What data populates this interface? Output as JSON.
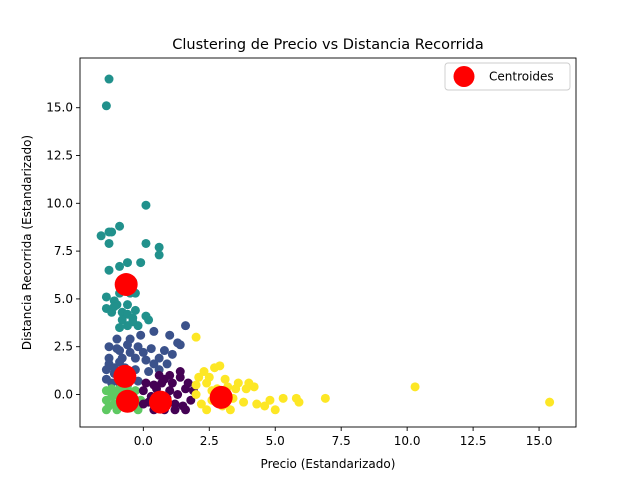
{
  "chart_data": {
    "type": "scatter",
    "title": "Clustering de Precio vs Distancia Recorrida",
    "xlabel": "Precio (Estandarizado)",
    "ylabel": "Distancia Recorrida (Estandarizado)",
    "xlim": [
      -2.4,
      16.4
    ],
    "ylim": [
      -1.7,
      17.6
    ],
    "xticks": [
      0.0,
      2.5,
      5.0,
      7.5,
      10.0,
      12.5,
      15.0
    ],
    "xtick_labels": [
      "0.0",
      "2.5",
      "5.0",
      "7.5",
      "10.0",
      "12.5",
      "15.0"
    ],
    "yticks": [
      0.0,
      2.5,
      5.0,
      7.5,
      10.0,
      12.5,
      15.0
    ],
    "ytick_labels": [
      "0.0",
      "2.5",
      "5.0",
      "7.5",
      "10.0",
      "12.5",
      "15.0"
    ],
    "grid": false,
    "legend_position": "top-right",
    "series": [
      {
        "color": "#21918c",
        "points": [
          [
            -1.3,
            16.5
          ],
          [
            -1.4,
            15.1
          ],
          [
            0.1,
            9.9
          ],
          [
            -0.9,
            8.8
          ],
          [
            -1.6,
            8.3
          ],
          [
            -1.3,
            8.5
          ],
          [
            -1.2,
            8.5
          ],
          [
            0.1,
            7.9
          ],
          [
            -1.3,
            7.9
          ],
          [
            0.6,
            7.7
          ],
          [
            0.6,
            7.3
          ],
          [
            -0.9,
            6.7
          ],
          [
            -0.6,
            6.9
          ],
          [
            -0.1,
            6.9
          ],
          [
            -1.3,
            6.5
          ],
          [
            -0.6,
            6.1
          ],
          [
            -0.4,
            5.9
          ],
          [
            -1.4,
            5.1
          ],
          [
            -0.9,
            5.3
          ],
          [
            -0.5,
            5.3
          ],
          [
            -0.3,
            5.3
          ],
          [
            -1.1,
            4.9
          ],
          [
            -1.0,
            4.7
          ],
          [
            -0.6,
            4.7
          ],
          [
            -0.3,
            4.4
          ],
          [
            -1.4,
            4.5
          ],
          [
            -1.2,
            4.3
          ],
          [
            -0.8,
            4.3
          ],
          [
            -0.6,
            4.2
          ],
          [
            -0.4,
            4.0
          ],
          [
            0.1,
            4.1
          ],
          [
            0.2,
            3.9
          ],
          [
            -0.8,
            3.9
          ],
          [
            -0.6,
            3.6
          ],
          [
            -0.2,
            3.6
          ],
          [
            -0.9,
            3.5
          ],
          [
            -1.1,
            4.6
          ],
          [
            -0.4,
            3.8
          ]
        ]
      },
      {
        "color": "#3b528b",
        "points": [
          [
            1.6,
            3.6
          ],
          [
            1.0,
            3.1
          ],
          [
            1.3,
            2.7
          ],
          [
            0.4,
            3.3
          ],
          [
            -0.1,
            3.1
          ],
          [
            -0.5,
            2.9
          ],
          [
            -1.0,
            2.9
          ],
          [
            -1.3,
            2.5
          ],
          [
            -0.9,
            2.3
          ],
          [
            -0.6,
            2.6
          ],
          [
            -0.2,
            2.5
          ],
          [
            0.3,
            2.4
          ],
          [
            0.8,
            2.3
          ],
          [
            1.1,
            2.1
          ],
          [
            0.6,
            1.9
          ],
          [
            0.1,
            1.8
          ],
          [
            -0.3,
            1.9
          ],
          [
            -0.8,
            1.9
          ],
          [
            -1.3,
            1.9
          ],
          [
            -1.4,
            1.3
          ],
          [
            -1.1,
            1.1
          ],
          [
            -0.7,
            1.4
          ],
          [
            -0.3,
            1.3
          ],
          [
            0.2,
            1.2
          ],
          [
            0.6,
            1.3
          ],
          [
            0.9,
            1.6
          ],
          [
            -1.4,
            0.8
          ],
          [
            -1.2,
            0.6
          ],
          [
            -0.9,
            0.6
          ],
          [
            -0.6,
            0.5
          ],
          [
            -0.2,
            0.7
          ],
          [
            -1.3,
            1.6
          ],
          [
            -0.9,
            1.7
          ],
          [
            -0.5,
            2.2
          ],
          [
            0.0,
            2.2
          ],
          [
            0.4,
            1.6
          ],
          [
            1.4,
            2.6
          ],
          [
            -1.0,
            2.4
          ],
          [
            -0.6,
            1.0
          ],
          [
            -1.1,
            1.4
          ]
        ]
      },
      {
        "color": "#5ec962",
        "points": [
          [
            -1.4,
            -0.3
          ],
          [
            -1.3,
            -0.6
          ],
          [
            -1.2,
            -0.1
          ],
          [
            -1.1,
            -0.5
          ],
          [
            -1.0,
            -0.8
          ],
          [
            -0.9,
            -0.2
          ],
          [
            -0.8,
            -0.6
          ],
          [
            -0.7,
            0.1
          ],
          [
            -0.6,
            -0.4
          ],
          [
            -0.5,
            -0.7
          ],
          [
            -0.4,
            -0.1
          ],
          [
            -0.3,
            -0.5
          ],
          [
            -0.2,
            -0.8
          ],
          [
            -0.1,
            -0.3
          ],
          [
            -1.4,
            0.2
          ],
          [
            -1.2,
            0.3
          ],
          [
            -0.9,
            0.3
          ],
          [
            -0.6,
            0.3
          ],
          [
            -0.3,
            0.2
          ],
          [
            -1.4,
            -0.8
          ],
          [
            -1.0,
            0.0
          ],
          [
            -0.7,
            -0.3
          ]
        ]
      },
      {
        "color": "#440154",
        "points": [
          [
            0.0,
            0.2
          ],
          [
            0.2,
            -0.4
          ],
          [
            0.4,
            0.5
          ],
          [
            0.6,
            -0.7
          ],
          [
            0.8,
            0.8
          ],
          [
            1.0,
            0.2
          ],
          [
            1.2,
            -0.5
          ],
          [
            1.4,
            0.9
          ],
          [
            1.6,
            0.3
          ],
          [
            1.8,
            -0.3
          ],
          [
            0.3,
            -0.1
          ],
          [
            0.5,
            0.3
          ],
          [
            0.7,
            0.6
          ],
          [
            0.9,
            -0.2
          ],
          [
            1.1,
            0.6
          ],
          [
            1.3,
            0.0
          ],
          [
            1.5,
            -0.6
          ],
          [
            1.7,
            0.6
          ],
          [
            0.1,
            0.6
          ],
          [
            0.6,
            1.0
          ],
          [
            1.0,
            1.0
          ],
          [
            1.4,
            1.2
          ],
          [
            0.4,
            -0.8
          ],
          [
            0.8,
            -0.8
          ],
          [
            1.2,
            -0.8
          ],
          [
            1.6,
            -0.8
          ],
          [
            1.9,
            0.2
          ],
          [
            0.0,
            -0.5
          ]
        ]
      },
      {
        "color": "#fde725",
        "points": [
          [
            2.0,
            0.0
          ],
          [
            2.2,
            -0.5
          ],
          [
            2.4,
            0.6
          ],
          [
            2.6,
            -0.3
          ],
          [
            2.8,
            0.3
          ],
          [
            3.0,
            -0.6
          ],
          [
            3.2,
            0.4
          ],
          [
            3.4,
            -0.2
          ],
          [
            3.6,
            0.6
          ],
          [
            3.8,
            -0.4
          ],
          [
            2.1,
            0.9
          ],
          [
            2.3,
            1.2
          ],
          [
            2.7,
            1.4
          ],
          [
            2.9,
            1.5
          ],
          [
            2.5,
            0.9
          ],
          [
            3.1,
            0.8
          ],
          [
            3.5,
            0.3
          ],
          [
            3.9,
            0.3
          ],
          [
            4.2,
            0.4
          ],
          [
            4.3,
            -0.5
          ],
          [
            4.6,
            -0.6
          ],
          [
            4.8,
            -0.3
          ],
          [
            5.0,
            -0.8
          ],
          [
            5.3,
            -0.2
          ],
          [
            5.8,
            -0.2
          ],
          [
            5.9,
            -0.4
          ],
          [
            6.9,
            -0.2
          ],
          [
            10.3,
            0.4
          ],
          [
            15.4,
            -0.4
          ],
          [
            2.0,
            3.0
          ],
          [
            2.4,
            -0.8
          ],
          [
            3.3,
            -0.8
          ],
          [
            4.0,
            0.6
          ],
          [
            2.6,
            0.2
          ],
          [
            2.0,
            0.5
          ]
        ]
      }
    ],
    "centroids": {
      "name": "Centroides",
      "color": "#ff0000",
      "points": [
        [
          -0.65,
          5.75
        ],
        [
          -0.7,
          0.95
        ],
        [
          -0.6,
          -0.35
        ],
        [
          0.65,
          -0.4
        ],
        [
          2.95,
          -0.15
        ]
      ]
    }
  }
}
